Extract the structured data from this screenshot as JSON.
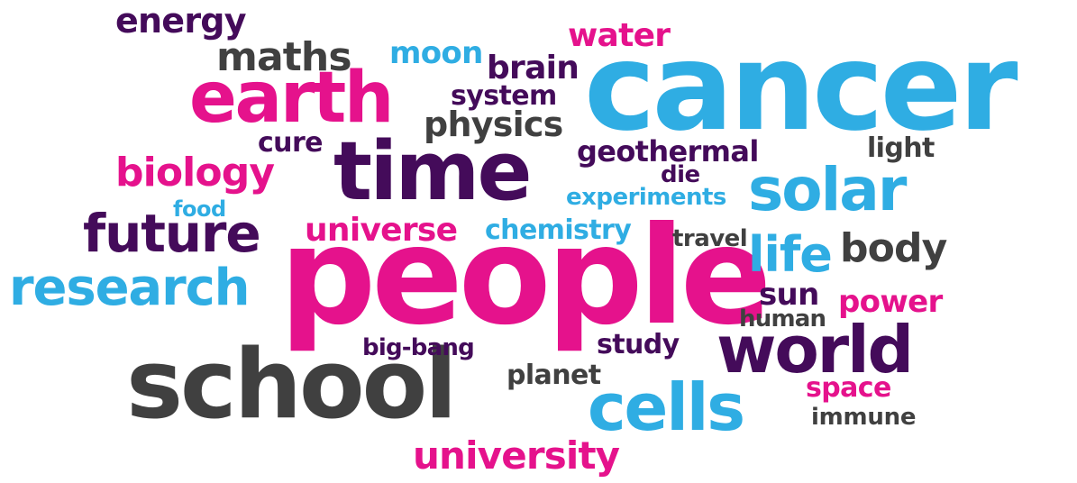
{
  "palette": {
    "pink": "#e5128c",
    "blue": "#2fade3",
    "purple": "#440b5a",
    "gray": "#404040"
  },
  "words": [
    {
      "text": "cancer",
      "color": "blue"
    },
    {
      "text": "people",
      "color": "pink"
    },
    {
      "text": "school",
      "color": "gray"
    },
    {
      "text": "time",
      "color": "purple"
    },
    {
      "text": "earth",
      "color": "pink"
    },
    {
      "text": "world",
      "color": "purple"
    },
    {
      "text": "cells",
      "color": "blue"
    },
    {
      "text": "solar",
      "color": "blue"
    },
    {
      "text": "future",
      "color": "purple"
    },
    {
      "text": "research",
      "color": "blue"
    },
    {
      "text": "life",
      "color": "blue"
    },
    {
      "text": "biology",
      "color": "pink"
    },
    {
      "text": "maths",
      "color": "gray"
    },
    {
      "text": "body",
      "color": "gray"
    },
    {
      "text": "university",
      "color": "pink"
    },
    {
      "text": "energy",
      "color": "purple"
    },
    {
      "text": "physics",
      "color": "gray"
    },
    {
      "text": "water",
      "color": "pink"
    },
    {
      "text": "moon",
      "color": "blue"
    },
    {
      "text": "brain",
      "color": "purple"
    },
    {
      "text": "universe",
      "color": "pink"
    },
    {
      "text": "power",
      "color": "pink"
    },
    {
      "text": "geothermal",
      "color": "purple"
    },
    {
      "text": "system",
      "color": "purple"
    },
    {
      "text": "sun",
      "color": "purple"
    },
    {
      "text": "space",
      "color": "pink"
    },
    {
      "text": "chemistry",
      "color": "blue"
    },
    {
      "text": "experiments",
      "color": "blue"
    },
    {
      "text": "cure",
      "color": "purple"
    },
    {
      "text": "study",
      "color": "purple"
    },
    {
      "text": "planet",
      "color": "gray"
    },
    {
      "text": "human",
      "color": "gray"
    },
    {
      "text": "light",
      "color": "gray"
    },
    {
      "text": "immune",
      "color": "gray"
    },
    {
      "text": "big-bang",
      "color": "purple"
    },
    {
      "text": "travel",
      "color": "gray"
    },
    {
      "text": "die",
      "color": "purple"
    },
    {
      "text": "food",
      "color": "blue"
    }
  ]
}
